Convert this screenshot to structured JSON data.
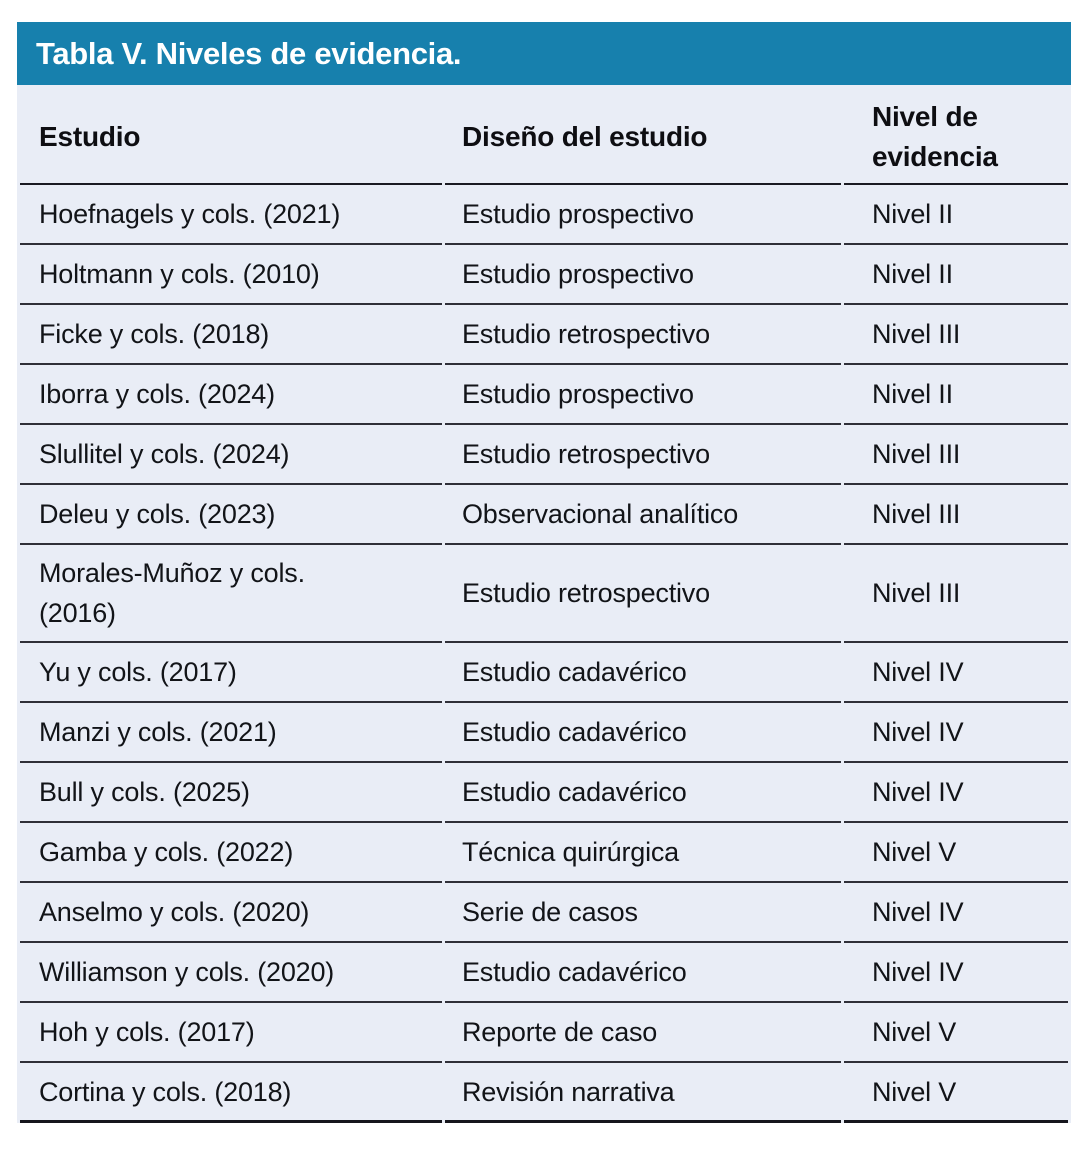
{
  "colors": {
    "title_bar_bg": "#1780ad",
    "title_text": "#ffffff",
    "table_bg": "#e9edf6",
    "text": "#121418",
    "rule_dark": "#1a1a22",
    "rule_row": "#2f2f38",
    "page_bg": "#ffffff"
  },
  "table": {
    "title": "Tabla V. Niveles de evidencia.",
    "columns": [
      "Estudio",
      "Diseño del estudio",
      "Nivel de evidencia"
    ],
    "rows": [
      {
        "estudio": "Hoefnagels y cols. (2021)",
        "diseno": "Estudio prospectivo",
        "nivel": "Nivel II"
      },
      {
        "estudio": "Holtmann y cols. (2010)",
        "diseno": "Estudio prospectivo",
        "nivel": "Nivel II"
      },
      {
        "estudio": "Ficke y cols. (2018)",
        "diseno": "Estudio retrospectivo",
        "nivel": "Nivel III"
      },
      {
        "estudio": "Iborra y cols. (2024)",
        "diseno": "Estudio prospectivo",
        "nivel": "Nivel II"
      },
      {
        "estudio": "Slullitel y cols. (2024)",
        "diseno": "Estudio retrospectivo",
        "nivel": "Nivel III"
      },
      {
        "estudio": "Deleu y cols. (2023)",
        "diseno": "Observacional analítico",
        "nivel": "Nivel III"
      },
      {
        "estudio": "Morales-Muñoz y cols.\n(2016)",
        "diseno": "Estudio retrospectivo",
        "nivel": "Nivel III"
      },
      {
        "estudio": "Yu y cols. (2017)",
        "diseno": "Estudio cadavérico",
        "nivel": "Nivel IV"
      },
      {
        "estudio": "Manzi y cols. (2021)",
        "diseno": "Estudio cadavérico",
        "nivel": "Nivel IV"
      },
      {
        "estudio": "Bull y cols. (2025)",
        "diseno": "Estudio cadavérico",
        "nivel": "Nivel IV"
      },
      {
        "estudio": "Gamba y cols. (2022)",
        "diseno": "Técnica quirúrgica",
        "nivel": "Nivel V"
      },
      {
        "estudio": "Anselmo y cols. (2020)",
        "diseno": "Serie de casos",
        "nivel": "Nivel IV"
      },
      {
        "estudio": "Williamson y cols. (2020)",
        "diseno": "Estudio cadavérico",
        "nivel": "Nivel IV"
      },
      {
        "estudio": "Hoh y cols. (2017)",
        "diseno": "Reporte de caso",
        "nivel": "Nivel V"
      },
      {
        "estudio": "Cortina y cols. (2018)",
        "diseno": "Revisión narrativa",
        "nivel": "Nivel V"
      }
    ]
  }
}
